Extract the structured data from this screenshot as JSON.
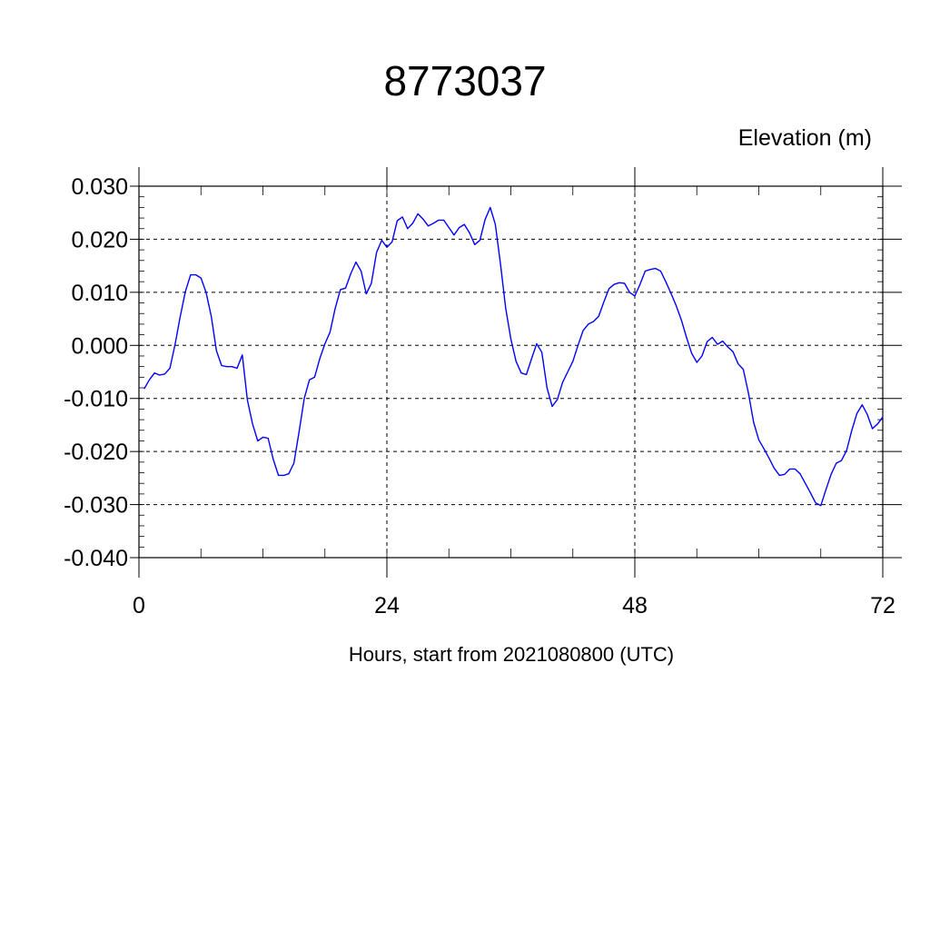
{
  "chart_data": {
    "type": "line",
    "title": "8773037",
    "ylabel": "Elevation (m)",
    "xlabel": "Hours, start from 2021080800 (UTC)",
    "xlim": [
      0,
      72
    ],
    "ylim": [
      -0.04,
      0.03
    ],
    "xticks": [
      0,
      24,
      48,
      72
    ],
    "xtick_labels": [
      "0",
      "24",
      "48",
      "72"
    ],
    "yticks": [
      -0.04,
      -0.03,
      -0.02,
      -0.01,
      0.0,
      0.01,
      0.02,
      0.03
    ],
    "ytick_labels": [
      "-0.040",
      "-0.030",
      "-0.020",
      "-0.010",
      "0.000",
      "0.010",
      "0.020",
      "0.030"
    ],
    "grid": true,
    "series": [
      {
        "color": "#0000ff",
        "x": [
          0.5,
          1.0,
          1.5,
          2.0,
          2.5,
          3.0,
          3.5,
          4.0,
          4.5,
          5.0,
          5.5,
          6.0,
          6.5,
          7.0,
          7.5,
          8.0,
          8.5,
          9.0,
          9.5,
          10.0,
          10.5,
          11.0,
          11.5,
          12.0,
          12.5,
          13.0,
          13.5,
          14.0,
          14.5,
          15.0,
          15.5,
          16.0,
          16.5,
          17.0,
          17.5,
          18.0,
          18.5,
          19.0,
          19.5,
          20.0,
          20.5,
          21.0,
          21.5,
          22.0,
          22.5,
          23.0,
          23.5,
          24.0,
          24.5,
          25.0,
          25.5,
          26.0,
          26.5,
          27.0,
          27.5,
          28.0,
          28.5,
          29.0,
          29.5,
          30.0,
          30.5,
          31.0,
          31.5,
          32.0,
          32.5,
          33.0,
          33.5,
          34.0,
          34.5,
          35.0,
          35.5,
          36.0,
          36.5,
          37.0,
          37.5,
          38.0,
          38.5,
          39.0,
          39.5,
          40.0,
          40.5,
          41.0,
          41.5,
          42.0,
          42.5,
          43.0,
          43.5,
          44.0,
          44.5,
          45.0,
          45.5,
          46.0,
          46.5,
          47.0,
          47.5,
          48.0,
          48.5,
          49.0,
          49.5,
          50.0,
          50.5,
          51.0,
          51.5,
          52.0,
          52.5,
          53.0,
          53.5,
          54.0,
          54.5,
          55.0,
          55.5,
          56.0,
          56.5,
          57.0,
          57.5,
          58.0,
          58.5,
          59.0,
          59.5,
          60.0,
          60.5,
          61.0,
          61.5,
          62.0,
          62.5,
          63.0,
          63.5,
          64.0,
          64.5,
          65.0,
          65.5,
          66.0,
          66.5,
          67.0,
          67.5,
          68.0,
          68.5,
          69.0,
          69.5,
          70.0,
          70.5,
          71.0,
          71.5,
          72.0
        ],
        "y": [
          -0.0082,
          -0.0065,
          -0.0052,
          -0.0056,
          -0.0054,
          -0.0043,
          0.0002,
          0.0055,
          0.0102,
          0.0133,
          0.0133,
          0.0127,
          0.01,
          0.0055,
          -0.001,
          -0.0038,
          -0.004,
          -0.004,
          -0.0043,
          -0.0018,
          -0.0103,
          -0.0148,
          -0.018,
          -0.0173,
          -0.0175,
          -0.0215,
          -0.0245,
          -0.0245,
          -0.0242,
          -0.0222,
          -0.0163,
          -0.01,
          -0.0065,
          -0.006,
          -0.0025,
          0.0003,
          0.0025,
          0.007,
          0.0105,
          0.0108,
          0.0135,
          0.0157,
          0.014,
          0.0097,
          0.0117,
          0.0175,
          0.0198,
          0.0185,
          0.0195,
          0.0235,
          0.0242,
          0.022,
          0.023,
          0.0248,
          0.0238,
          0.0225,
          0.023,
          0.0236,
          0.0236,
          0.0222,
          0.0208,
          0.0222,
          0.0228,
          0.0212,
          0.019,
          0.0198,
          0.0237,
          0.026,
          0.0228,
          0.0153,
          0.007,
          0.0012,
          -0.003,
          -0.0052,
          -0.0055,
          -0.0025,
          0.0003,
          -0.0013,
          -0.008,
          -0.0115,
          -0.0102,
          -0.007,
          -0.005,
          -0.003,
          0.0,
          0.0028,
          0.004,
          0.0045,
          0.0055,
          0.0082,
          0.0107,
          0.0115,
          0.0118,
          0.0117,
          0.01,
          0.0093,
          0.0115,
          0.014,
          0.0143,
          0.0145,
          0.014,
          0.012,
          0.0098,
          0.0075,
          0.0048,
          0.0015,
          -0.0015,
          -0.0032,
          -0.002,
          0.0007,
          0.0015,
          0.0002,
          0.0008,
          -0.0003,
          -0.0012,
          -0.0035,
          -0.0045,
          -0.009,
          -0.0145,
          -0.0178,
          -0.0195,
          -0.0213,
          -0.0232,
          -0.0245,
          -0.0243,
          -0.0233,
          -0.0233,
          -0.0242,
          -0.026,
          -0.0278,
          -0.0297,
          -0.0302,
          -0.0272,
          -0.0243,
          -0.0222,
          -0.0217,
          -0.0198,
          -0.016,
          -0.0128,
          -0.0112,
          -0.013,
          -0.0157,
          -0.0148,
          -0.0135
        ]
      }
    ]
  }
}
